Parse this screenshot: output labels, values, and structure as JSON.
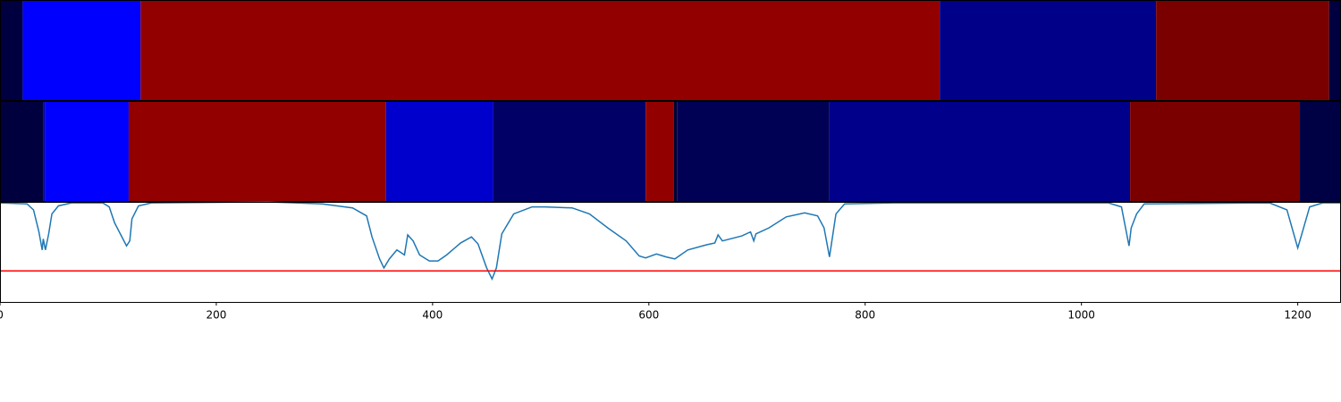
{
  "chart_data": [
    {
      "type": "segments",
      "xlim": [
        0,
        1240
      ],
      "segments": [
        {
          "start": 0,
          "end": 21,
          "color": "#000040"
        },
        {
          "start": 21,
          "end": 130,
          "color": "#0000ff"
        },
        {
          "start": 130,
          "end": 869,
          "color": "#920000"
        },
        {
          "start": 869,
          "end": 1069,
          "color": "#000088"
        },
        {
          "start": 1069,
          "end": 1229,
          "color": "#7a0000"
        },
        {
          "start": 1229,
          "end": 1240,
          "color": "#000040"
        }
      ]
    },
    {
      "type": "segments",
      "xlim": [
        0,
        1240
      ],
      "segments": [
        {
          "start": 0,
          "end": 40,
          "color": "#00003f"
        },
        {
          "start": 40,
          "end": 42,
          "color": "#0000aa"
        },
        {
          "start": 42,
          "end": 119,
          "color": "#0000ff"
        },
        {
          "start": 119,
          "end": 357,
          "color": "#920000"
        },
        {
          "start": 357,
          "end": 456,
          "color": "#0000cc"
        },
        {
          "start": 456,
          "end": 597,
          "color": "#000066"
        },
        {
          "start": 597,
          "end": 623,
          "color": "#920000"
        },
        {
          "start": 623,
          "end": 626,
          "color": "#000033"
        },
        {
          "start": 626,
          "end": 767,
          "color": "#000055"
        },
        {
          "start": 767,
          "end": 1045,
          "color": "#00008b"
        },
        {
          "start": 1045,
          "end": 1202,
          "color": "#7a0000"
        },
        {
          "start": 1202,
          "end": 1240,
          "color": "#000044"
        }
      ]
    },
    {
      "type": "line",
      "xlim": [
        0,
        1240
      ],
      "ylim": [
        0,
        1
      ],
      "xticks": [
        0,
        200,
        400,
        600,
        800,
        1000,
        1200
      ],
      "color": "#1f77b4",
      "x": [
        0,
        25,
        31,
        36,
        39,
        40,
        42,
        45,
        48,
        54,
        66,
        95,
        101,
        106,
        117,
        120,
        122,
        128,
        140,
        248,
        298,
        326,
        339,
        344,
        351,
        355,
        360,
        367,
        374,
        377,
        382,
        388,
        397,
        405,
        413,
        426,
        436,
        442,
        450,
        455,
        459,
        464,
        475,
        492,
        504,
        529,
        545,
        562,
        579,
        591,
        597,
        607,
        616,
        624,
        636,
        653,
        661,
        664,
        668,
        686,
        694,
        697,
        699,
        711,
        727,
        744,
        756,
        762,
        767,
        773,
        781,
        826,
        1025,
        1037,
        1044,
        1046,
        1051,
        1058,
        1174,
        1190,
        1200,
        1203,
        1211,
        1223,
        1240
      ],
      "values": [
        0.99,
        0.98,
        0.92,
        0.7,
        0.52,
        0.63,
        0.52,
        0.68,
        0.88,
        0.96,
        0.99,
        0.99,
        0.95,
        0.79,
        0.56,
        0.61,
        0.83,
        0.96,
        0.99,
        1.0,
        0.98,
        0.94,
        0.86,
        0.65,
        0.43,
        0.34,
        0.43,
        0.52,
        0.47,
        0.67,
        0.61,
        0.47,
        0.41,
        0.41,
        0.47,
        0.59,
        0.65,
        0.58,
        0.34,
        0.23,
        0.34,
        0.68,
        0.88,
        0.95,
        0.95,
        0.94,
        0.88,
        0.74,
        0.61,
        0.46,
        0.44,
        0.48,
        0.45,
        0.43,
        0.52,
        0.57,
        0.59,
        0.67,
        0.61,
        0.66,
        0.7,
        0.61,
        0.68,
        0.74,
        0.85,
        0.89,
        0.86,
        0.74,
        0.45,
        0.88,
        0.98,
        0.99,
        0.99,
        0.95,
        0.56,
        0.74,
        0.88,
        0.98,
        0.99,
        0.92,
        0.54,
        0.65,
        0.95,
        0.99,
        0.99
      ],
      "hline": {
        "value": 0.31,
        "color": "#ff0000"
      }
    }
  ]
}
